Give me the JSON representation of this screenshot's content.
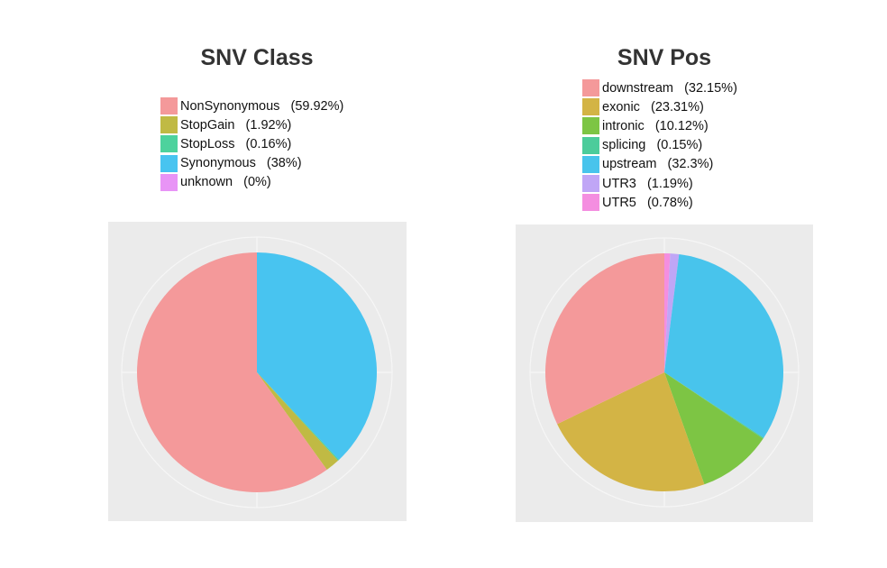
{
  "chart_data": [
    {
      "type": "pie",
      "title": "SNV Class",
      "slices": [
        {
          "label": "NonSynonymous",
          "value": 59.92,
          "legend": "NonSynonymous   (59.92%)",
          "color": "#f4999a"
        },
        {
          "label": "StopGain",
          "value": 1.92,
          "legend": "StopGain   (1.92%)",
          "color": "#c0ba44"
        },
        {
          "label": "StopLoss",
          "value": 0.16,
          "legend": "StopLoss   (0.16%)",
          "color": "#4dd29d"
        },
        {
          "label": "Synonymous",
          "value": 38,
          "legend": "Synonymous   (38%)",
          "color": "#48c4f0"
        },
        {
          "label": "unknown",
          "value": 0,
          "legend": "unknown   (0%)",
          "color": "#e894f6"
        }
      ],
      "order": [
        "Synonymous",
        "StopLoss",
        "StopGain",
        "NonSynonymous"
      ],
      "legend_position": "top"
    },
    {
      "type": "pie",
      "title": "SNV Pos",
      "slices": [
        {
          "label": "downstream",
          "value": 32.15,
          "legend": "downstream   (32.15%)",
          "color": "#f4999a"
        },
        {
          "label": "exonic",
          "value": 23.31,
          "legend": "exonic   (23.31%)",
          "color": "#d3b445"
        },
        {
          "label": "intronic",
          "value": 10.12,
          "legend": "intronic   (10.12%)",
          "color": "#7dc544"
        },
        {
          "label": "splicing",
          "value": 0.15,
          "legend": "splicing   (0.15%)",
          "color": "#4ccc9b"
        },
        {
          "label": "upstream",
          "value": 32.3,
          "legend": "upstream   (32.3%)",
          "color": "#48c4ec"
        },
        {
          "label": "UTR3",
          "value": 1.19,
          "legend": "UTR3   (1.19%)",
          "color": "#c0a6f6"
        },
        {
          "label": "UTR5",
          "value": 0.78,
          "legend": "UTR5   (0.78%)",
          "color": "#f48ee0"
        }
      ],
      "order": [
        "UTR5",
        "UTR3",
        "upstream",
        "splicing",
        "intronic",
        "exonic",
        "downstream"
      ],
      "legend_position": "top"
    }
  ]
}
